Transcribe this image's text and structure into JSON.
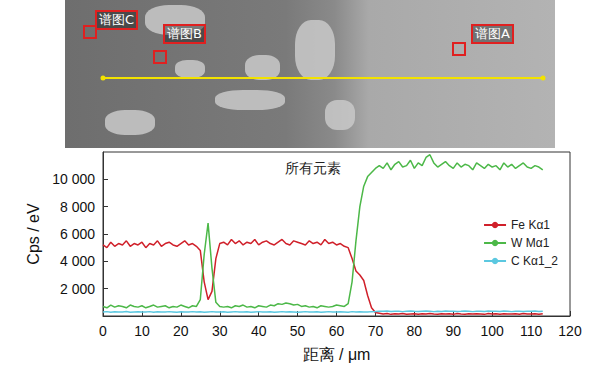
{
  "chart_data": {
    "type": "line",
    "title": "所有元素",
    "x_label": "距离 / μm",
    "y_label": "Cps / eV",
    "xlim": [
      0,
      120
    ],
    "xticks": [
      0,
      10,
      20,
      30,
      40,
      50,
      60,
      70,
      80,
      90,
      100,
      110,
      120
    ],
    "ylim": [
      0,
      12000
    ],
    "yticks": [
      {
        "value": 2000,
        "label": "2 000"
      },
      {
        "value": 4000,
        "label": "4 000"
      },
      {
        "value": 6000,
        "label": "6 000"
      },
      {
        "value": 8000,
        "label": "8 000"
      },
      {
        "value": 10000,
        "label": "10 000"
      }
    ],
    "grid": false,
    "legend": "right",
    "x": [
      0,
      1,
      2,
      3,
      4,
      5,
      6,
      7,
      8,
      9,
      10,
      11,
      12,
      13,
      14,
      15,
      16,
      17,
      18,
      19,
      20,
      21,
      22,
      23,
      24,
      25,
      26,
      27,
      28,
      29,
      30,
      31,
      32,
      33,
      34,
      35,
      36,
      37,
      38,
      39,
      40,
      41,
      42,
      43,
      44,
      45,
      46,
      47,
      48,
      49,
      50,
      51,
      52,
      53,
      54,
      55,
      56,
      57,
      58,
      59,
      60,
      61,
      62,
      63,
      64,
      65,
      66,
      67,
      68,
      69,
      70,
      71,
      72,
      73,
      74,
      75,
      76,
      77,
      78,
      79,
      80,
      81,
      82,
      83,
      84,
      85,
      86,
      87,
      88,
      89,
      90,
      91,
      92,
      93,
      94,
      95,
      96,
      97,
      98,
      99,
      100,
      101,
      102,
      103,
      104,
      105,
      106,
      107,
      108,
      109,
      110,
      111,
      112,
      113
    ],
    "series": [
      {
        "name": "Fe Kα1",
        "color": "#d0202a",
        "values": [
          5200,
          5000,
          5400,
          5100,
          5300,
          5200,
          5500,
          5100,
          5300,
          5200,
          5400,
          5000,
          5300,
          5200,
          5500,
          5100,
          5300,
          5400,
          5200,
          5100,
          5300,
          5500,
          5200,
          5300,
          5100,
          4800,
          2500,
          1200,
          1800,
          4200,
          5300,
          5400,
          5200,
          5600,
          5300,
          5500,
          5200,
          5400,
          5300,
          5600,
          5200,
          5400,
          5500,
          5300,
          5200,
          5400,
          5600,
          5300,
          5200,
          5500,
          5400,
          5300,
          5200,
          5500,
          5300,
          5400,
          5200,
          5600,
          5300,
          5400,
          5200,
          5300,
          5100,
          5000,
          4200,
          3300,
          3000,
          2600,
          1500,
          600,
          250,
          200,
          150,
          180,
          120,
          160,
          140,
          180,
          130,
          150,
          170,
          120,
          160,
          140,
          190,
          150,
          130,
          170,
          140,
          160,
          120,
          180,
          150,
          130,
          170,
          140,
          160,
          150,
          120,
          180,
          140,
          160,
          130,
          170,
          150,
          140,
          160,
          130,
          180,
          150,
          140,
          170,
          130,
          160
        ]
      },
      {
        "name": "W Mα1",
        "color": "#4cb848",
        "values": [
          700,
          600,
          800,
          650,
          750,
          700,
          600,
          800,
          700,
          650,
          750,
          600,
          700,
          800,
          650,
          700,
          750,
          600,
          700,
          650,
          800,
          700,
          600,
          750,
          700,
          1200,
          4500,
          6800,
          3500,
          1000,
          700,
          650,
          700,
          600,
          750,
          700,
          800,
          650,
          700,
          600,
          750,
          700,
          650,
          800,
          750,
          900,
          850,
          950,
          900,
          800,
          850,
          700,
          750,
          650,
          700,
          600,
          750,
          700,
          650,
          700,
          800,
          750,
          700,
          900,
          2500,
          5500,
          8000,
          9500,
          10200,
          10500,
          10800,
          11000,
          10800,
          11200,
          10700,
          11100,
          11300,
          10900,
          11000,
          11400,
          10800,
          11200,
          11000,
          11600,
          11800,
          11200,
          10900,
          11100,
          11300,
          11000,
          10800,
          11200,
          10900,
          11100,
          11000,
          10700,
          11200,
          11000,
          10800,
          11100,
          10900,
          11000,
          10700,
          11200,
          10900,
          11100,
          10800,
          11000,
          11200,
          10900,
          10800,
          11000,
          10900,
          10700
        ]
      },
      {
        "name": "C Kα1_2",
        "color": "#5bc8e0",
        "values": [
          300,
          320,
          280,
          310,
          290,
          300,
          330,
          280,
          300,
          310,
          290,
          300,
          320,
          280,
          310,
          300,
          290,
          320,
          300,
          280,
          310,
          300,
          290,
          320,
          300,
          310,
          280,
          300,
          320,
          290,
          300,
          310,
          280,
          300,
          320,
          290,
          300,
          310,
          280,
          300,
          320,
          290,
          300,
          310,
          280,
          300,
          320,
          290,
          310,
          300,
          280,
          300,
          320,
          290,
          300,
          310,
          280,
          300,
          320,
          300,
          290,
          310,
          300,
          280,
          320,
          300,
          310,
          290,
          300,
          320,
          330,
          350,
          340,
          360,
          330,
          350,
          340,
          320,
          350,
          360,
          340,
          330,
          350,
          360,
          340,
          320,
          350,
          330,
          360,
          340,
          350,
          330,
          340,
          360,
          350,
          320,
          340,
          350,
          330,
          360,
          340,
          350,
          330,
          360,
          340,
          320,
          350,
          340,
          330,
          350,
          340,
          360,
          330,
          350
        ]
      }
    ]
  },
  "micrograph": {
    "labels": [
      "谱图C",
      "谱图B",
      "谱图A"
    ]
  }
}
